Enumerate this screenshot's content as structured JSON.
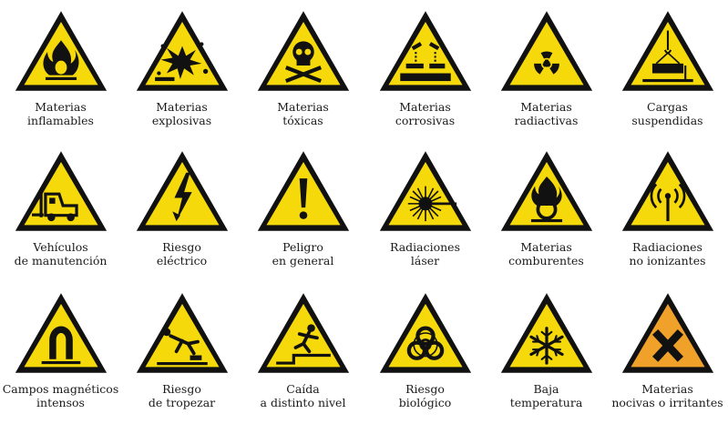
{
  "signs": [
    {
      "line1": "Materias",
      "line2": "inflamables",
      "icon": "flame-icon"
    },
    {
      "line1": "Materias",
      "line2": "explosivas",
      "icon": "explosion-icon"
    },
    {
      "line1": "Materias",
      "line2": "tóxicas",
      "icon": "skull-crossbones-icon"
    },
    {
      "line1": "Materias",
      "line2": "corrosivas",
      "icon": "corrosive-icon"
    },
    {
      "line1": "Materias",
      "line2": "radiactivas",
      "icon": "radiation-icon"
    },
    {
      "line1": "Cargas",
      "line2": "suspendidas",
      "icon": "suspended-load-icon"
    },
    {
      "line1": "Vehículos",
      "line2": "de manutención",
      "icon": "forklift-icon"
    },
    {
      "line1": "Riesgo",
      "line2": "eléctrico",
      "icon": "lightning-bolt-icon"
    },
    {
      "line1": "Peligro",
      "line2": "en general",
      "icon": "exclamation-icon"
    },
    {
      "line1": "Radiaciones",
      "line2": "láser",
      "icon": "laser-icon"
    },
    {
      "line1": "Materias",
      "line2": "comburentes",
      "icon": "oxidizer-icon"
    },
    {
      "line1": "Radiaciones",
      "line2": "no ionizantes",
      "icon": "non-ionizing-radiation-icon"
    },
    {
      "line1": "Campos magnéticos",
      "line2": "intensos",
      "icon": "magnet-icon"
    },
    {
      "line1": "Riesgo",
      "line2": "de tropezar",
      "icon": "trip-hazard-icon"
    },
    {
      "line1": "Caída",
      "line2": "a distinto nivel",
      "icon": "fall-hazard-icon"
    },
    {
      "line1": "Riesgo",
      "line2": "biológico",
      "icon": "biohazard-icon"
    },
    {
      "line1": "Baja",
      "line2": "temperatura",
      "icon": "snowflake-icon"
    },
    {
      "line1": "Materias",
      "line2": "nocivas o irritantes",
      "icon": "harmful-x-icon"
    }
  ],
  "colors": {
    "warning_yellow": "#f5d90a",
    "harmful_orange": "#f0a12a",
    "black": "#111111"
  }
}
